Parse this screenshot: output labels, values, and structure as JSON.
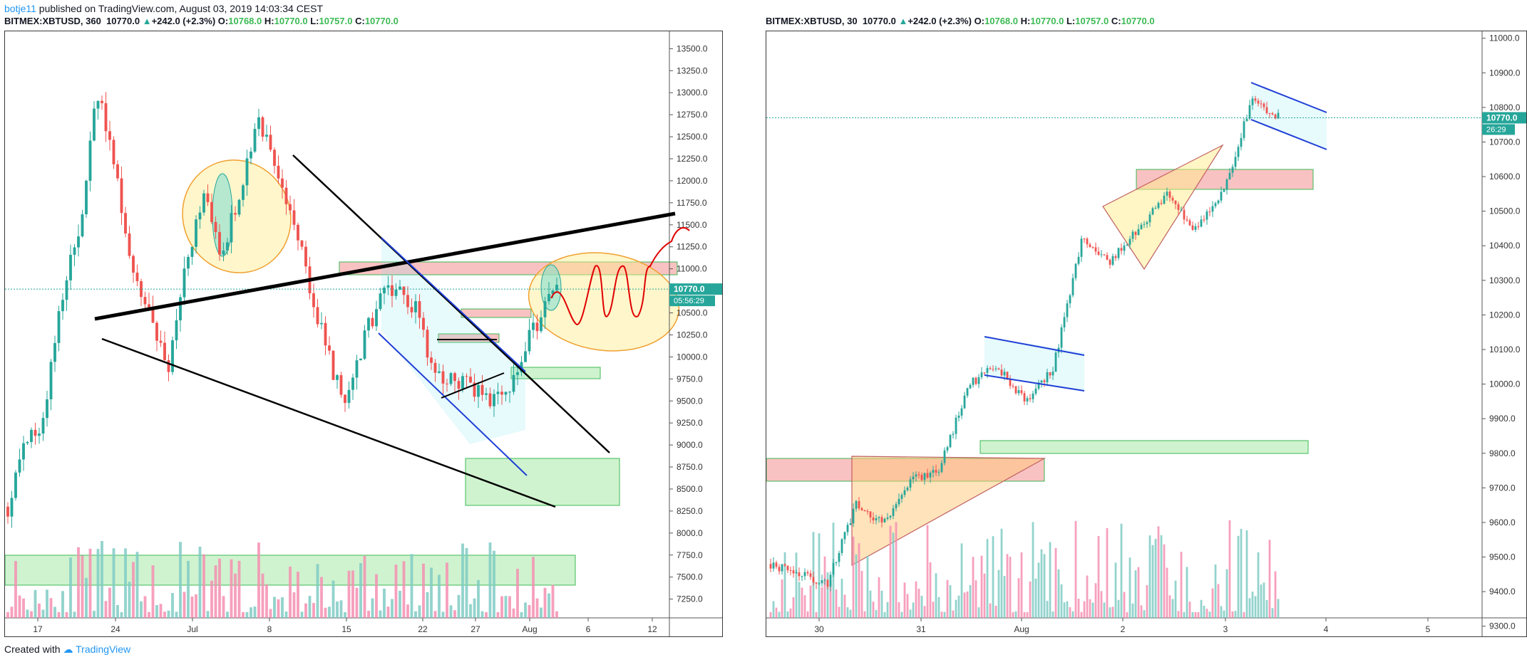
{
  "publish": {
    "user": "botje11",
    "text": "published on TradingView.com, August 03, 2019 14:03:34 CEST"
  },
  "footer": {
    "created": "Created with",
    "brand": "TradingView"
  },
  "colors": {
    "up": "#26a69a",
    "down": "#ef5350",
    "volUp": "#80cbc4",
    "volDown": "#f48fb1"
  },
  "chart_data": [
    {
      "type": "candlestick",
      "symbol": "BITMEX:XBTUSD",
      "interval": "360",
      "last": "10770.0",
      "change": "+242.0 (+2.3%)",
      "ohlc": {
        "o": "10768.0",
        "h": "10770.0",
        "l": "10757.0",
        "c": "10770.0"
      },
      "price_label": "10770.0",
      "countdown": "05:56:29",
      "y_ticks": [
        "13500.0",
        "13250.0",
        "13000.0",
        "12750.0",
        "12500.0",
        "12250.0",
        "12000.0",
        "11750.0",
        "11500.0",
        "11250.0",
        "11000.0",
        "10750.0",
        "10500.0",
        "10250.0",
        "10000.0",
        "9750.0",
        "9500.0",
        "9250.0",
        "9000.0",
        "8750.0",
        "8500.0",
        "8250.0",
        "8000.0",
        "7750.0",
        "7500.0",
        "7250.0"
      ],
      "x_ticks": [
        "17",
        "24",
        "Jul",
        "8",
        "15",
        "22",
        "27",
        "Aug",
        "6",
        "12"
      ],
      "ylim": [
        7150,
        13600
      ],
      "x_range": [
        "Jun 13",
        "Aug 17"
      ],
      "approx_close_path": [
        [
          "Jun 13",
          8300
        ],
        [
          "Jun 17",
          9000
        ],
        [
          "Jun 20",
          9250
        ],
        [
          "Jun 22",
          10700
        ],
        [
          "Jun 25",
          11400
        ],
        [
          "Jun 26",
          13000
        ],
        [
          "Jun 27",
          12200
        ],
        [
          "Jun 28",
          11000
        ],
        [
          "Jul 1",
          10500
        ],
        [
          "Jul 2",
          9800
        ],
        [
          "Jul 3",
          11000
        ],
        [
          "Jul 4",
          11900
        ],
        [
          "Jul 6",
          11200
        ],
        [
          "Jul 8",
          11800
        ],
        [
          "Jul 10",
          12700
        ],
        [
          "Jul 11",
          12200
        ],
        [
          "Jul 13",
          11600
        ],
        [
          "Jul 15",
          10800
        ],
        [
          "Jul 16",
          10000
        ],
        [
          "Jul 17",
          9400
        ],
        [
          "Jul 18",
          10200
        ],
        [
          "Jul 19",
          10700
        ],
        [
          "Jul 20",
          10800
        ],
        [
          "Jul 21",
          10500
        ],
        [
          "Jul 23",
          9800
        ],
        [
          "Jul 25",
          9800
        ],
        [
          "Jul 26",
          9650
        ],
        [
          "Jul 28",
          9500
        ],
        [
          "Jul 30",
          9600
        ],
        [
          "Aug 1",
          10100
        ],
        [
          "Aug 2",
          10500
        ],
        [
          "Aug 3",
          10770
        ]
      ]
    },
    {
      "type": "candlestick",
      "symbol": "BITMEX:XBTUSD",
      "interval": "30",
      "last": "10770.0",
      "change": "+242.0 (+2.3%)",
      "ohlc": {
        "o": "10768.0",
        "h": "10770.0",
        "l": "10757.0",
        "c": "10770.0"
      },
      "price_label": "10770.0",
      "countdown": "26:29",
      "y_ticks": [
        "11000.0",
        "10900.0",
        "10800.0",
        "10700.0",
        "10600.0",
        "10500.0",
        "10400.0",
        "10300.0",
        "10200.0",
        "10100.0",
        "10000.0",
        "9900.0",
        "9800.0",
        "9700.0",
        "9600.0",
        "9500.0",
        "9400.0",
        "9300.0"
      ],
      "x_ticks": [
        "30",
        "31",
        "Aug",
        "2",
        "3",
        "4",
        "5"
      ],
      "ylim": [
        9250,
        11020
      ],
      "approx_close_path": [
        [
          "Jul 29 12:00",
          9480
        ],
        [
          "Jul 30 00:00",
          9450
        ],
        [
          "Jul 30 08:00",
          9420
        ],
        [
          "Jul 30 20:00",
          9650
        ],
        [
          "Jul 31 00:00",
          9600
        ],
        [
          "Jul 31 06:00",
          9720
        ],
        [
          "Jul 31 12:00",
          9760
        ],
        [
          "Jul 31 18:00",
          10000
        ],
        [
          "Aug 1 00:00",
          10050
        ],
        [
          "Aug 1 08:00",
          9950
        ],
        [
          "Aug 1 14:00",
          10050
        ],
        [
          "Aug 1 22:00",
          10420
        ],
        [
          "Aug 2 06:00",
          10350
        ],
        [
          "Aug 2 12:00",
          10450
        ],
        [
          "Aug 2 18:00",
          10550
        ],
        [
          "Aug 2 22:00",
          10450
        ],
        [
          "Aug 3 02:00",
          10550
        ],
        [
          "Aug 3 06:00",
          10820
        ],
        [
          "Aug 3 12:00",
          10770
        ]
      ]
    }
  ]
}
